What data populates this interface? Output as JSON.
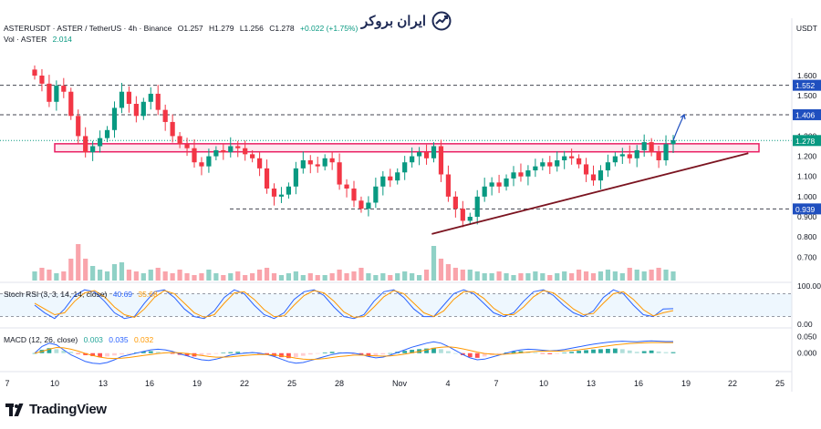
{
  "header": {
    "symbol": "ASTERUSDT · ASTER / TetherUS · 4h · Binance",
    "open": "O1.257",
    "high": "H1.279",
    "low": "L1.256",
    "close": "C1.278",
    "change": "+0.022 (+1.75%)",
    "vol_label": "Vol · ASTER",
    "vol_value": "2.014"
  },
  "brand": {
    "name": "ایران بروکر"
  },
  "quote_currency": "USDT",
  "watermark": "TradingView",
  "colors": {
    "up": "#089981",
    "down": "#f23645",
    "zone": "#e91e63",
    "trend": "#7b1420",
    "price_tag": "#1f4fbf",
    "stoch_k": "#2962ff",
    "stoch_d": "#ff9800"
  },
  "chart_data": [
    {
      "type": "candlestick",
      "title": "ASTERUSDT · ASTER / TetherUS · 4h · Binance",
      "ylim": [
        0.62,
        1.74
      ],
      "y_ticks": [
        "1.600",
        "1.500",
        "1.400",
        "1.300",
        "1.200",
        "1.100",
        "1.000",
        "0.900",
        "0.800",
        "0.700"
      ],
      "x_ticks": [
        "7",
        "10",
        "13",
        "16",
        "19",
        "22",
        "25",
        "28",
        "Nov",
        "4",
        "7",
        "10",
        "13",
        "16",
        "19",
        "22",
        "25"
      ],
      "price_labels": [
        {
          "value": 1.552,
          "text": "1.552",
          "style": "dashed"
        },
        {
          "value": 1.406,
          "text": "1.406",
          "style": "dashed"
        },
        {
          "value": 1.278,
          "text": "1.278",
          "style": "current"
        },
        {
          "value": 0.939,
          "text": "0.939",
          "style": "dashed"
        }
      ],
      "resistance_zone": [
        1.222,
        1.262
      ],
      "trendline": {
        "from": {
          "date": "Nov 3",
          "price": 0.815
        },
        "to": {
          "date": "Nov 23",
          "price": 1.215
        }
      },
      "projection_arrow": {
        "from": 1.278,
        "to": 1.406
      },
      "close_series": [
        1.6,
        1.56,
        1.47,
        1.55,
        1.52,
        1.4,
        1.3,
        1.22,
        1.25,
        1.29,
        1.33,
        1.44,
        1.52,
        1.46,
        1.4,
        1.47,
        1.51,
        1.43,
        1.37,
        1.3,
        1.26,
        1.24,
        1.17,
        1.15,
        1.2,
        1.23,
        1.22,
        1.25,
        1.24,
        1.21,
        1.19,
        1.14,
        1.04,
        1.0,
        1.01,
        1.05,
        1.14,
        1.18,
        1.16,
        1.15,
        1.19,
        1.17,
        1.06,
        1.04,
        0.98,
        0.94,
        0.97,
        1.05,
        1.1,
        1.08,
        1.12,
        1.17,
        1.2,
        1.22,
        1.19,
        1.25,
        1.11,
        1.0,
        0.94,
        0.88,
        0.9,
        1.0,
        1.05,
        1.07,
        1.05,
        1.09,
        1.12,
        1.1,
        1.13,
        1.15,
        1.17,
        1.15,
        1.18,
        1.2,
        1.19,
        1.16,
        1.11,
        1.08,
        1.13,
        1.17,
        1.2,
        1.21,
        1.19,
        1.23,
        1.27,
        1.22,
        1.18,
        1.26,
        1.28
      ]
    },
    {
      "type": "bar",
      "title": "Vol · ASTER",
      "values": [
        0.25,
        0.35,
        0.3,
        0.2,
        0.25,
        0.6,
        1.0,
        0.6,
        0.4,
        0.3,
        0.25,
        0.45,
        0.5,
        0.3,
        0.25,
        0.2,
        0.3,
        0.35,
        0.25,
        0.2,
        0.3,
        0.2,
        0.15,
        0.2,
        0.3,
        0.2,
        0.15,
        0.2,
        0.25,
        0.15,
        0.2,
        0.3,
        0.35,
        0.2,
        0.15,
        0.2,
        0.25,
        0.15,
        0.2,
        0.15,
        0.15,
        0.2,
        0.3,
        0.2,
        0.25,
        0.35,
        0.2,
        0.15,
        0.2,
        0.15,
        0.2,
        0.25,
        0.2,
        0.15,
        0.3,
        0.95,
        0.6,
        0.45,
        0.35,
        0.3,
        0.3,
        0.25,
        0.2,
        0.2,
        0.25,
        0.2,
        0.15,
        0.2,
        0.2,
        0.25,
        0.2,
        0.15,
        0.2,
        0.25,
        0.2,
        0.3,
        0.25,
        0.2,
        0.25,
        0.3,
        0.25,
        0.2,
        0.35,
        0.3,
        0.25,
        0.3,
        0.35,
        0.3,
        0.25
      ]
    },
    {
      "type": "line",
      "title": "Stoch RSI (3, 3, 14, 14, close)",
      "legend": [
        "40.69",
        "35.68"
      ],
      "ylim": [
        0,
        100
      ],
      "y_ticks": [
        "100.00",
        "0.00"
      ],
      "band": [
        20,
        80
      ],
      "series": [
        {
          "name": "K",
          "values": [
            50,
            30,
            15,
            40,
            75,
            90,
            85,
            60,
            30,
            15,
            20,
            55,
            85,
            90,
            70,
            40,
            20,
            15,
            35,
            70,
            90,
            80,
            50,
            25,
            15,
            30,
            65,
            85,
            90,
            75,
            45,
            20,
            15,
            25,
            60,
            85,
            90,
            70,
            40,
            20,
            20,
            50,
            80,
            90,
            80,
            55,
            30,
            20,
            30,
            60,
            85,
            90,
            75,
            50,
            30,
            20,
            35,
            70,
            90,
            80,
            50,
            25,
            20,
            40,
            40.69
          ]
        },
        {
          "name": "D",
          "values": [
            55,
            40,
            25,
            30,
            60,
            82,
            88,
            72,
            45,
            25,
            18,
            40,
            70,
            88,
            80,
            55,
            30,
            18,
            25,
            55,
            82,
            85,
            65,
            38,
            20,
            22,
            50,
            75,
            88,
            82,
            60,
            32,
            18,
            20,
            45,
            72,
            88,
            80,
            55,
            30,
            20,
            35,
            65,
            85,
            85,
            68,
            42,
            25,
            25,
            45,
            72,
            88,
            82,
            62,
            40,
            25,
            28,
            55,
            80,
            85,
            65,
            38,
            22,
            30,
            35.68
          ]
        }
      ]
    },
    {
      "type": "bar",
      "title": "MACD (12, 26, close)",
      "legend": [
        "0.003",
        "0.035",
        "0.032"
      ],
      "ylim": [
        -0.05,
        0.065
      ],
      "y_ticks": [
        "0.050",
        "0.000"
      ],
      "histogram": [
        0.0,
        0.01,
        0.015,
        0.012,
        0.008,
        0.004,
        -0.002,
        -0.006,
        -0.009,
        -0.012,
        -0.01,
        -0.007,
        -0.004,
        -0.002,
        0.002,
        0.005,
        0.006,
        0.004,
        0.002,
        -0.002,
        -0.005,
        -0.008,
        -0.01,
        -0.008,
        -0.005,
        -0.002,
        0.001,
        0.003,
        0.004,
        0.003,
        0.001,
        -0.002,
        -0.005,
        -0.009,
        -0.012,
        -0.015,
        -0.012,
        -0.008,
        -0.004,
        -0.001,
        0.002,
        0.004,
        0.003,
        0.001,
        -0.002,
        -0.006,
        -0.01,
        -0.008,
        -0.004,
        0.0,
        0.004,
        0.007,
        0.01,
        0.012,
        0.014,
        0.016,
        0.012,
        0.006,
        0.0,
        -0.006,
        -0.012,
        -0.014,
        -0.01,
        -0.006,
        -0.002,
        0.002,
        0.005,
        0.006,
        0.004,
        0.002,
        -0.001,
        -0.003,
        -0.002,
        0.001,
        0.004,
        0.007,
        0.009,
        0.011,
        0.012,
        0.013,
        0.014,
        0.012,
        0.008,
        0.004,
        0.006,
        0.008,
        0.005,
        0.003,
        0.003
      ],
      "series": [
        {
          "name": "MACD",
          "values": [
            0.0,
            0.02,
            0.03,
            0.025,
            0.01,
            -0.005,
            -0.015,
            -0.025,
            -0.03,
            -0.032,
            -0.028,
            -0.02,
            -0.01,
            -0.005,
            0.0,
            0.005,
            0.01,
            0.012,
            0.01,
            0.005,
            -0.002,
            -0.008,
            -0.015,
            -0.02,
            -0.022,
            -0.018,
            -0.012,
            -0.006,
            -0.002,
            0.0,
            0.002,
            0.0,
            -0.004,
            -0.01,
            -0.018,
            -0.026,
            -0.03,
            -0.028,
            -0.022,
            -0.016,
            -0.01,
            -0.004,
            0.0,
            0.001,
            0.0,
            -0.004,
            -0.01,
            -0.014,
            -0.012,
            -0.006,
            0.002,
            0.01,
            0.018,
            0.024,
            0.03,
            0.034,
            0.03,
            0.02,
            0.008,
            -0.004,
            -0.014,
            -0.02,
            -0.018,
            -0.012,
            -0.006,
            0.0,
            0.006,
            0.01,
            0.012,
            0.011,
            0.009,
            0.007,
            0.008,
            0.011,
            0.015,
            0.019,
            0.023,
            0.027,
            0.03,
            0.033,
            0.035,
            0.036,
            0.035,
            0.034,
            0.036,
            0.037,
            0.036,
            0.035,
            0.035
          ]
        },
        {
          "name": "Signal",
          "values": [
            0.0,
            0.005,
            0.012,
            0.017,
            0.016,
            0.012,
            0.006,
            -0.001,
            -0.007,
            -0.012,
            -0.015,
            -0.016,
            -0.015,
            -0.013,
            -0.01,
            -0.007,
            -0.004,
            -0.001,
            0.001,
            0.002,
            0.001,
            -0.001,
            -0.004,
            -0.007,
            -0.01,
            -0.012,
            -0.012,
            -0.011,
            -0.009,
            -0.007,
            -0.005,
            -0.004,
            -0.004,
            -0.005,
            -0.008,
            -0.011,
            -0.015,
            -0.018,
            -0.019,
            -0.018,
            -0.016,
            -0.013,
            -0.01,
            -0.008,
            -0.006,
            -0.006,
            -0.007,
            -0.008,
            -0.009,
            -0.008,
            -0.006,
            -0.003,
            0.001,
            0.005,
            0.01,
            0.015,
            0.018,
            0.019,
            0.017,
            0.013,
            0.008,
            0.003,
            -0.001,
            -0.003,
            -0.004,
            -0.003,
            -0.001,
            0.001,
            0.003,
            0.005,
            0.006,
            0.006,
            0.006,
            0.007,
            0.008,
            0.01,
            0.013,
            0.016,
            0.019,
            0.022,
            0.025,
            0.027,
            0.029,
            0.03,
            0.031,
            0.032,
            0.032,
            0.032,
            0.032
          ]
        }
      ]
    }
  ]
}
